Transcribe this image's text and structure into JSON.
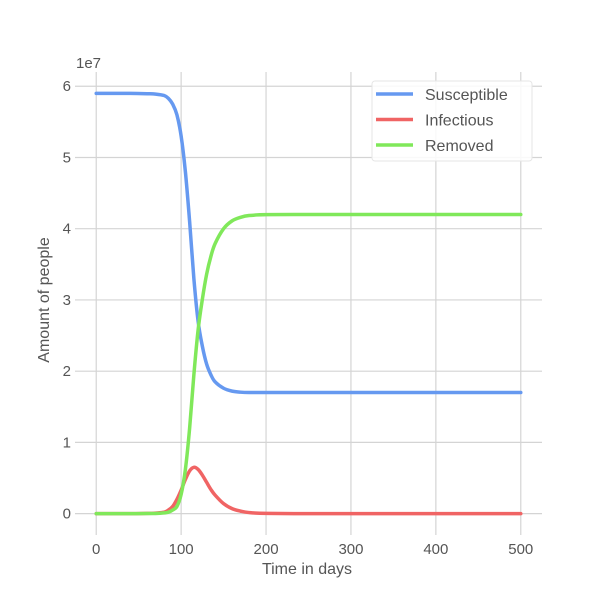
{
  "chart_data": {
    "type": "line",
    "title": "",
    "xlabel": "Time in days",
    "ylabel": "Amount of people",
    "y_scale_label": "1e7",
    "xlim": [
      -25,
      525
    ],
    "ylim": [
      -0.3,
      6.2
    ],
    "xticks": [
      0,
      100,
      200,
      300,
      400,
      500
    ],
    "yticks": [
      0,
      1,
      2,
      3,
      4,
      5,
      6
    ],
    "grid": true,
    "legend_position": "top-right",
    "x": [
      0,
      20,
      40,
      60,
      70,
      80,
      85,
      90,
      95,
      100,
      105,
      110,
      115,
      120,
      125,
      130,
      135,
      140,
      150,
      160,
      170,
      180,
      200,
      250,
      300,
      400,
      500
    ],
    "series": [
      {
        "name": "Susceptible",
        "color": "#6699f0",
        "values": [
          5.9,
          5.9,
          5.9,
          5.895,
          5.89,
          5.87,
          5.83,
          5.75,
          5.6,
          5.3,
          4.8,
          4.1,
          3.3,
          2.7,
          2.35,
          2.1,
          1.95,
          1.85,
          1.76,
          1.72,
          1.705,
          1.7,
          1.7,
          1.7,
          1.7,
          1.7,
          1.7
        ]
      },
      {
        "name": "Infectious",
        "color": "#f06464",
        "values": [
          0,
          0,
          0,
          0.003,
          0.008,
          0.02,
          0.05,
          0.1,
          0.2,
          0.33,
          0.48,
          0.6,
          0.65,
          0.62,
          0.54,
          0.44,
          0.34,
          0.26,
          0.14,
          0.07,
          0.035,
          0.015,
          0.003,
          0,
          0,
          0,
          0
        ]
      },
      {
        "name": "Removed",
        "color": "#80e85a",
        "values": [
          0,
          0,
          0,
          0.002,
          0.002,
          0.01,
          0.02,
          0.05,
          0.1,
          0.27,
          0.62,
          1.2,
          1.95,
          2.58,
          3.01,
          3.36,
          3.61,
          3.79,
          4.0,
          4.11,
          4.16,
          4.185,
          4.197,
          4.2,
          4.2,
          4.2,
          4.2
        ]
      }
    ]
  }
}
